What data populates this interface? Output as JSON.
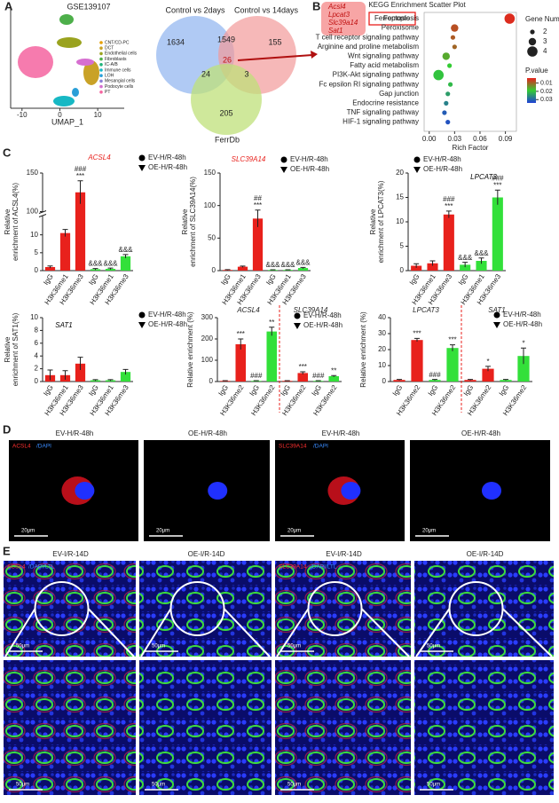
{
  "panels": {
    "A": {
      "letter": "A",
      "umap": {
        "title": "GSE139107",
        "xlabel": "UMAP_1",
        "xlim": [
          -13,
          17
        ],
        "xticks": [
          -10,
          0,
          10
        ],
        "legend": [
          {
            "name": "CNT/CD-PC",
            "color": "#e69f00"
          },
          {
            "name": "DCT",
            "color": "#c9a227"
          },
          {
            "name": "Endothelial cells",
            "color": "#9aa31f"
          },
          {
            "name": "Fibroblasts",
            "color": "#4daf4a"
          },
          {
            "name": "IC-A/B",
            "color": "#1fb37a"
          },
          {
            "name": "Immune cells",
            "color": "#17b8c4"
          },
          {
            "name": "LOH",
            "color": "#2a9fd8"
          },
          {
            "name": "Mesangial cells",
            "color": "#8b7fd6"
          },
          {
            "name": "Podocyte cells",
            "color": "#d66fd0"
          },
          {
            "name": "PT",
            "color": "#f564a0"
          }
        ]
      },
      "venn": {
        "sets": [
          "Control vs 2days",
          "Control vs 14days",
          "FerrDb"
        ],
        "regions": [
          1634,
          1549,
          155,
          24,
          26,
          3,
          205
        ]
      }
    },
    "B": {
      "letter": "B",
      "title": "KEGG Enrichment Scatter Plot",
      "genes": [
        "Acsl4",
        "Lpcat3",
        "Slc39a14",
        "Sat1"
      ],
      "xlabel": "Rich Factor",
      "xlim": [
        -0.006,
        0.103
      ],
      "xticks": [
        {
          "value": 0,
          "label": "0.00"
        },
        {
          "value": 0.03,
          "label": "0.03"
        },
        {
          "value": 0.06,
          "label": "0.06"
        },
        {
          "value": 0.09,
          "label": "0.09"
        }
      ],
      "size_title": "Gene Number",
      "size_ticks": [
        2,
        3,
        4
      ],
      "color_title": "P.value",
      "plim": [
        0.004,
        0.034
      ],
      "color_ticks": [
        0.01,
        0.02,
        0.03
      ],
      "pathways": [
        "Ferroptosis",
        "Peroxisome",
        "T cell receptor signaling pathway",
        "Arginine and proline metabolism",
        "Wnt signaling pathway",
        "Fatty acid metabolism",
        "PI3K-Akt signaling pathway",
        "Fc epsilon RI signaling pathway",
        "Gap junction",
        "Endocrine resistance",
        "TNF signaling pathway",
        "HIF-1 signaling pathway"
      ],
      "rich_factor": [
        0.095,
        0.03,
        0.028,
        0.03,
        0.02,
        0.024,
        0.011,
        0.025,
        0.022,
        0.02,
        0.018,
        0.022
      ],
      "gene_number": [
        4,
        3,
        2,
        2,
        3,
        2,
        4,
        2,
        2,
        2,
        2,
        2
      ],
      "p_value": [
        0.005,
        0.008,
        0.009,
        0.01,
        0.016,
        0.019,
        0.02,
        0.021,
        0.024,
        0.027,
        0.031,
        0.032
      ]
    },
    "C": {
      "letter": "C",
      "legend": [
        {
          "name": "EV-H/R-48h",
          "marker": "circle"
        },
        {
          "name": "OE-H/R-48h",
          "marker": "triangle"
        }
      ],
      "charts": [
        {
          "title": "ACSL4",
          "title_color": "#e8211c",
          "ylabel": [
            "Relative",
            "enrichment of ACSL4(%)"
          ],
          "categories": [
            "IgG",
            "H3K36me1",
            "H3K36me3",
            "IgG",
            "H3K36me1",
            "H3K36me3"
          ],
          "values": [
            1,
            10.5,
            125,
            0.4,
            0.5,
            4
          ],
          "errors": [
            0.3,
            1,
            15,
            0.2,
            0.2,
            0.5
          ],
          "colors": [
            "#e8211c",
            "#e8211c",
            "#e8211c",
            "#33e03a",
            "#33e03a",
            "#33e03a"
          ],
          "annotations": [
            null,
            null,
            [
              "###",
              "***"
            ],
            [
              "&&&"
            ],
            [
              "&&&"
            ],
            [
              "&&&"
            ]
          ],
          "ylim": [
            0,
            150
          ],
          "ybreak": [
            15,
            100
          ],
          "yticks": [
            0,
            5,
            10,
            100,
            150
          ]
        },
        {
          "title": "SLC39A14",
          "title_color": "#e8211c",
          "ylabel": [
            "Relative",
            "enrichment of SLC39A14(%)"
          ],
          "categories": [
            "IgG",
            "H3K36me1",
            "H3K36me3",
            "IgG",
            "H3K36me1",
            "H3K36me3"
          ],
          "values": [
            1,
            6,
            80,
            1,
            1,
            4
          ],
          "errors": [
            0.5,
            1,
            13,
            0.3,
            0.3,
            1
          ],
          "colors": [
            "#e8211c",
            "#e8211c",
            "#e8211c",
            "#33e03a",
            "#33e03a",
            "#33e03a"
          ],
          "annotations": [
            null,
            null,
            [
              "##",
              "***"
            ],
            [
              "&&&"
            ],
            [
              "&&&"
            ],
            [
              "&&&"
            ]
          ],
          "ylim": [
            0,
            150
          ],
          "yticks": [
            0,
            50,
            100,
            150
          ]
        },
        {
          "title": "LPCAT3",
          "title_color": "#000000",
          "ylabel": [
            "Relative",
            "enrichment of LPCAT3(%)"
          ],
          "categories": [
            "IgG",
            "H3K36me1",
            "H3K36me3",
            "IgG",
            "H3K36me1",
            "H3K36me3"
          ],
          "values": [
            1,
            1.5,
            11.5,
            1.2,
            2,
            15
          ],
          "errors": [
            0.4,
            0.5,
            0.7,
            0.5,
            0.6,
            1.5
          ],
          "colors": [
            "#e8211c",
            "#e8211c",
            "#e8211c",
            "#33e03a",
            "#33e03a",
            "#33e03a"
          ],
          "annotations": [
            null,
            null,
            [
              "###",
              "***"
            ],
            [
              "&&&"
            ],
            [
              "&&&"
            ],
            [
              "###",
              "***"
            ]
          ],
          "ylim": [
            0,
            20
          ],
          "yticks": [
            0,
            5,
            10,
            15,
            20
          ]
        },
        {
          "title": "SAT1",
          "title_color": "#000000",
          "ylabel": [
            "Relative",
            "enrichment of SAT1(%)"
          ],
          "categories": [
            "IgG",
            "H3K36me1",
            "H3K36me3",
            "IgG",
            "H3K36me1",
            "H3K36me3"
          ],
          "values": [
            1,
            1,
            2.8,
            0.2,
            0.2,
            1.5
          ],
          "errors": [
            0.8,
            0.7,
            1,
            0.1,
            0.1,
            0.4
          ],
          "colors": [
            "#e8211c",
            "#e8211c",
            "#e8211c",
            "#33e03a",
            "#33e03a",
            "#33e03a"
          ],
          "annotations": [
            null,
            null,
            null,
            null,
            null,
            null
          ],
          "ylim": [
            0,
            10
          ],
          "yticks": [
            0,
            2,
            4,
            6,
            8,
            10
          ]
        },
        {
          "groups": [
            "ACSL4",
            "SLC39A14"
          ],
          "ylabel": [
            "Relative enrichment (%)"
          ],
          "categories": [
            "IgG",
            "H3K36me2",
            "IgG",
            "H3K36me2",
            "IgG",
            "H3K36me2",
            "IgG",
            "H3K36me2"
          ],
          "values": [
            3,
            175,
            3,
            235,
            3,
            40,
            3,
            25
          ],
          "errors": [
            1,
            25,
            1,
            20,
            1,
            6,
            1,
            3
          ],
          "colors": [
            "#e8211c",
            "#e8211c",
            "#33e03a",
            "#33e03a",
            "#e8211c",
            "#e8211c",
            "#33e03a",
            "#33e03a"
          ],
          "annotations": [
            null,
            [
              "***"
            ],
            [
              "###"
            ],
            [
              "**"
            ],
            null,
            [
              "***"
            ],
            [
              "###"
            ],
            [
              "**"
            ]
          ],
          "ylim": [
            0,
            300
          ],
          "yticks": [
            0,
            100,
            200,
            300
          ]
        },
        {
          "groups": [
            "LPCAT3",
            "SAT1"
          ],
          "ylabel": [
            "Relative enrichment (%)"
          ],
          "categories": [
            "IgG",
            "H3K36me2",
            "IgG",
            "H3K36me2",
            "IgG",
            "H3K36me2",
            "IgG",
            "H3K36me2"
          ],
          "values": [
            1,
            26,
            1,
            21,
            1,
            8,
            1,
            16
          ],
          "errors": [
            0.3,
            1,
            0.3,
            2,
            0.3,
            1.5,
            0.3,
            5
          ],
          "colors": [
            "#e8211c",
            "#e8211c",
            "#33e03a",
            "#33e03a",
            "#e8211c",
            "#e8211c",
            "#33e03a",
            "#33e03a"
          ],
          "annotations": [
            null,
            [
              "***"
            ],
            [
              "###"
            ],
            [
              "***"
            ],
            null,
            [
              "*"
            ],
            null,
            [
              "*"
            ]
          ],
          "ylim": [
            0,
            40
          ],
          "yticks": [
            0,
            10,
            20,
            30,
            40
          ]
        }
      ]
    },
    "D": {
      "letter": "D",
      "images": [
        {
          "label": "EV-H/R-48h",
          "stain": [
            "ACSL4",
            "/DAPI"
          ],
          "scale": "20μm"
        },
        {
          "label": "OE-H/R-48h",
          "scale": "20μm"
        },
        {
          "label": "EV-H/R-48h",
          "stain": [
            "SLC39A14",
            "/DAPI"
          ],
          "scale": "20μm"
        },
        {
          "label": "OE-H/R-48h",
          "scale": "20μm"
        }
      ]
    },
    "E": {
      "letter": "E",
      "images": [
        {
          "label": "EV-I/R-14D",
          "stain": [
            "ACSL4",
            "/DAPI/LTL"
          ],
          "scale": "50μm"
        },
        {
          "label": "OE-I/R-14D",
          "scale": "50μm"
        },
        {
          "label": "EV-I/R-14D",
          "stain": [
            "SLC39A14",
            "/DAPI/LTL"
          ],
          "scale": "50μm"
        },
        {
          "label": "OE-I/R-14D",
          "scale": "50μm"
        }
      ]
    }
  }
}
